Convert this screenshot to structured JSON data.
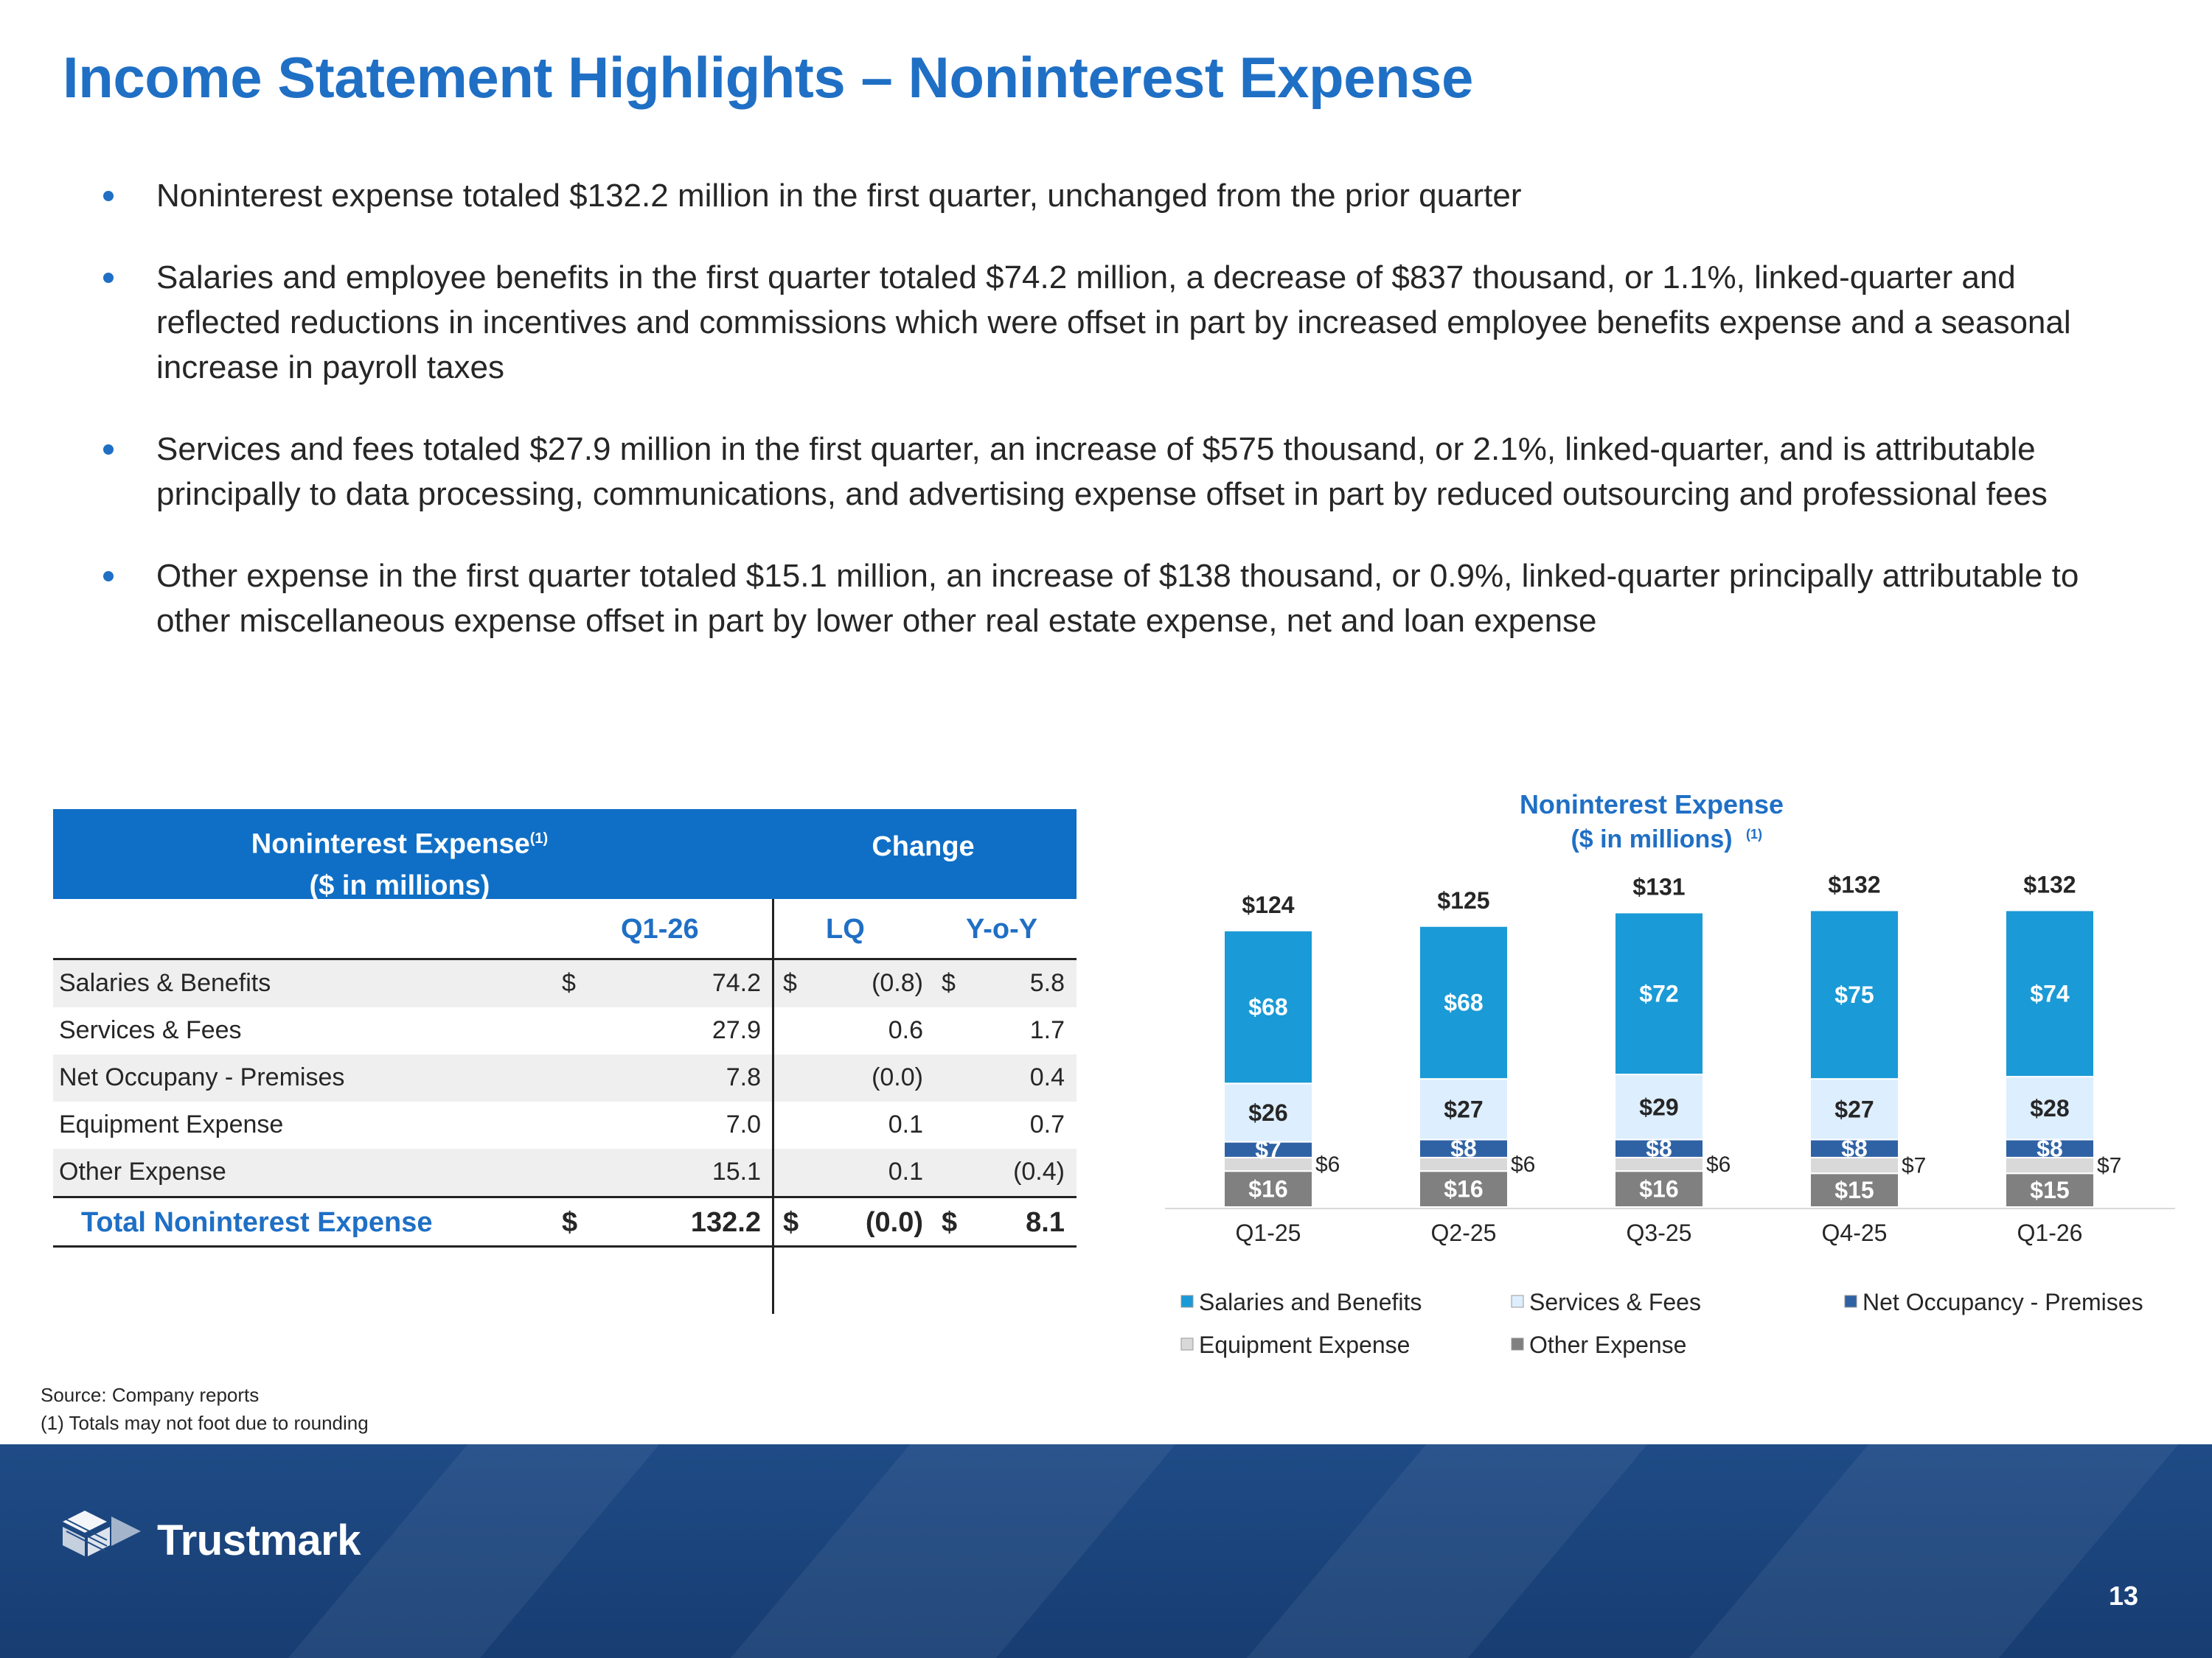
{
  "title": "Income Statement Highlights – Noninterest Expense",
  "bullets": [
    "Noninterest expense totaled $132.2 million in the first quarter, unchanged from the prior quarter",
    "Salaries and employee benefits in the first quarter totaled $74.2 million, a decrease of $837 thousand, or 1.1%, linked-quarter and reflected reductions in incentives and commissions which were offset in part by increased employee benefits expense and a seasonal increase in payroll taxes",
    "Services and fees totaled $27.9 million in the first quarter, an increase of $575 thousand, or 2.1%, linked-quarter, and is attributable principally to data processing, communications, and advertising expense offset in part by reduced outsourcing and professional fees",
    "Other expense in the first quarter totaled $15.1 million, an increase of $138 thousand, or 0.9%, linked-quarter principally attributable to other miscellaneous expense offset in part by lower other real estate expense, net and loan expense"
  ],
  "table": {
    "header_line1": "Noninterest Expense",
    "header_sup": "(1)",
    "header_line2": "($ in millions)",
    "change_label": "Change",
    "col_q": "Q1-26",
    "col_lq": "LQ",
    "col_yoy": "Y-o-Y",
    "rows": [
      {
        "label": "Salaries & Benefits",
        "d1": "$",
        "v1": "74.2",
        "d2": "$",
        "v2": "(0.8)",
        "d3": "$",
        "v3": "5.8"
      },
      {
        "label": "Services & Fees",
        "d1": "",
        "v1": "27.9",
        "d2": "",
        "v2": "0.6",
        "d3": "",
        "v3": "1.7"
      },
      {
        "label": "Net Occupany - Premises",
        "d1": "",
        "v1": "7.8",
        "d2": "",
        "v2": "(0.0)",
        "d3": "",
        "v3": "0.4"
      },
      {
        "label": "Equipment Expense",
        "d1": "",
        "v1": "7.0",
        "d2": "",
        "v2": "0.1",
        "d3": "",
        "v3": "0.7"
      },
      {
        "label": "Other Expense",
        "d1": "",
        "v1": "15.1",
        "d2": "",
        "v2": "0.1",
        "d3": "",
        "v3": "(0.4)"
      }
    ],
    "total": {
      "label": "Total Noninterest Expense",
      "d1": "$",
      "v1": "132.2",
      "d2": "$",
      "v2": "(0.0)",
      "d3": "$",
      "v3": "8.1"
    }
  },
  "chart_data": {
    "type": "bar",
    "stacked": true,
    "title": "Noninterest Expense",
    "subtitle": "($ in millions)",
    "subtitle_sup": "(1)",
    "categories": [
      "Q1-25",
      "Q2-25",
      "Q3-25",
      "Q4-25",
      "Q1-26"
    ],
    "totals": [
      "$124",
      "$125",
      "$131",
      "$132",
      "$132"
    ],
    "series": [
      {
        "name": "Other Expense",
        "color": "#808080",
        "values": [
          16,
          16,
          16,
          15,
          15
        ],
        "labels": [
          "$16",
          "$16",
          "$16",
          "$15",
          "$15"
        ],
        "label_pos": "inside"
      },
      {
        "name": "Equipment Expense",
        "color": "#d9d9d9",
        "values": [
          6,
          6,
          6,
          7,
          7
        ],
        "labels": [
          "$6",
          "$6",
          "$6",
          "$7",
          "$7"
        ],
        "label_pos": "right"
      },
      {
        "name": "Net Occupancy - Premises",
        "color": "#2f62a4",
        "values": [
          7,
          8,
          8,
          8,
          8
        ],
        "labels": [
          "$7",
          "$8",
          "$8",
          "$8",
          "$8"
        ],
        "label_pos": "inside"
      },
      {
        "name": "Services & Fees",
        "color": "#ddeeff",
        "values": [
          26,
          27,
          29,
          27,
          28
        ],
        "labels": [
          "$26",
          "$27",
          "$29",
          "$27",
          "$28"
        ],
        "label_pos": "inside"
      },
      {
        "name": "Salaries and Benefits",
        "color": "#1a9ad6",
        "values": [
          68,
          68,
          72,
          75,
          74
        ],
        "labels": [
          "$68",
          "$68",
          "$72",
          "$75",
          "$74"
        ],
        "label_pos": "inside"
      }
    ],
    "legend": [
      {
        "name": "Salaries and Benefits",
        "color": "#1a9ad6"
      },
      {
        "name": "Services & Fees",
        "color": "#ddeeff"
      },
      {
        "name": "Net Occupancy - Premises",
        "color": "#2f62a4"
      },
      {
        "name": "Equipment Expense",
        "color": "#d9d9d9"
      },
      {
        "name": "Other Expense",
        "color": "#808080"
      }
    ],
    "legend_placement": "bottom"
  },
  "footnotes": {
    "source": "Source: Company reports",
    "note1": "(1) Totals may not foot due to rounding"
  },
  "footer": {
    "brand": "Trustmark",
    "page": "13"
  }
}
